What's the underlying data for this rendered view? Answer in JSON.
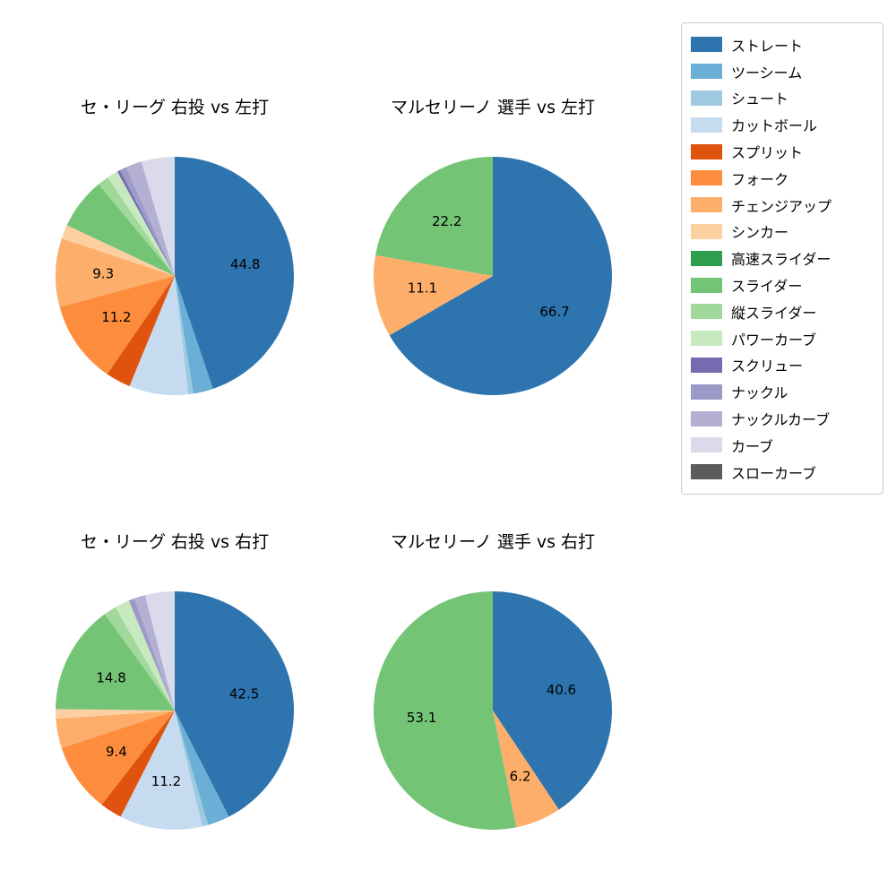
{
  "figure": {
    "background": "#ffffff"
  },
  "legend": {
    "items": [
      {
        "label": "ストレート",
        "color": "#2e75b0"
      },
      {
        "label": "ツーシーム",
        "color": "#6baed6"
      },
      {
        "label": "シュート",
        "color": "#9ecae1"
      },
      {
        "label": "カットボール",
        "color": "#c6dbef"
      },
      {
        "label": "スプリット",
        "color": "#e0530e"
      },
      {
        "label": "フォーク",
        "color": "#fd8d3c"
      },
      {
        "label": "チェンジアップ",
        "color": "#fdae6b"
      },
      {
        "label": "シンカー",
        "color": "#fdd0a2"
      },
      {
        "label": "高速スライダー",
        "color": "#2e9e4e"
      },
      {
        "label": "スライダー",
        "color": "#74c476"
      },
      {
        "label": "縦スライダー",
        "color": "#a1d99b"
      },
      {
        "label": "パワーカーブ",
        "color": "#c7e9c0"
      },
      {
        "label": "スクリュー",
        "color": "#756bb1"
      },
      {
        "label": "ナックル",
        "color": "#9e9ac8"
      },
      {
        "label": "ナックルカーブ",
        "color": "#b3b0d3"
      },
      {
        "label": "カーブ",
        "color": "#dadaeb"
      },
      {
        "label": "スローカーブ",
        "color": "#5b5b5b"
      }
    ]
  },
  "chart_data": [
    {
      "type": "pie",
      "title": "セ・リーグ 右投 vs 左打",
      "start_angle": "top",
      "direction": "clockwise",
      "slices": [
        {
          "name": "ストレート",
          "value": 44.8,
          "label": "44.8"
        },
        {
          "name": "ツーシーム",
          "value": 2.7
        },
        {
          "name": "シュート",
          "value": 0.7
        },
        {
          "name": "カットボール",
          "value": 8.0
        },
        {
          "name": "スプリット",
          "value": 3.4
        },
        {
          "name": "フォーク",
          "value": 11.2,
          "label": "11.2"
        },
        {
          "name": "チェンジアップ",
          "value": 9.3,
          "label": "9.3"
        },
        {
          "name": "シンカー",
          "value": 1.9
        },
        {
          "name": "スライダー",
          "value": 7.0
        },
        {
          "name": "縦スライダー",
          "value": 1.5
        },
        {
          "name": "パワーカーブ",
          "value": 1.5
        },
        {
          "name": "スクリュー",
          "value": 0.4
        },
        {
          "name": "ナックル",
          "value": 0.9
        },
        {
          "name": "ナックルカーブ",
          "value": 2.2
        },
        {
          "name": "カーブ",
          "value": 4.5
        }
      ]
    },
    {
      "type": "pie",
      "title": "マルセリーノ 選手 vs 左打",
      "start_angle": "top",
      "direction": "clockwise",
      "slices": [
        {
          "name": "ストレート",
          "value": 66.7,
          "label": "66.7"
        },
        {
          "name": "チェンジアップ",
          "value": 11.1,
          "label": "11.1"
        },
        {
          "name": "スライダー",
          "value": 22.2,
          "label": "22.2"
        }
      ]
    },
    {
      "type": "pie",
      "title": "セ・リーグ 右投 vs 右打",
      "start_angle": "top",
      "direction": "clockwise",
      "slices": [
        {
          "name": "ストレート",
          "value": 42.5,
          "label": "42.5"
        },
        {
          "name": "ツーシーム",
          "value": 3.0
        },
        {
          "name": "シュート",
          "value": 0.8
        },
        {
          "name": "カットボール",
          "value": 11.2,
          "label": "11.2"
        },
        {
          "name": "スプリット",
          "value": 3.0
        },
        {
          "name": "フォーク",
          "value": 9.4,
          "label": "9.4"
        },
        {
          "name": "チェンジアップ",
          "value": 4.0
        },
        {
          "name": "シンカー",
          "value": 1.3
        },
        {
          "name": "スライダー",
          "value": 14.8,
          "label": "14.8"
        },
        {
          "name": "縦スライダー",
          "value": 1.7
        },
        {
          "name": "パワーカーブ",
          "value": 2.0
        },
        {
          "name": "ナックル",
          "value": 0.8
        },
        {
          "name": "ナックルカーブ",
          "value": 1.5
        },
        {
          "name": "カーブ",
          "value": 4.0
        }
      ]
    },
    {
      "type": "pie",
      "title": "マルセリーノ 選手 vs 右打",
      "start_angle": "top",
      "direction": "clockwise",
      "slices": [
        {
          "name": "ストレート",
          "value": 40.6,
          "label": "40.6"
        },
        {
          "name": "チェンジアップ",
          "value": 6.2,
          "label": "6.2"
        },
        {
          "name": "スライダー",
          "value": 53.1,
          "label": "53.1"
        }
      ]
    }
  ]
}
